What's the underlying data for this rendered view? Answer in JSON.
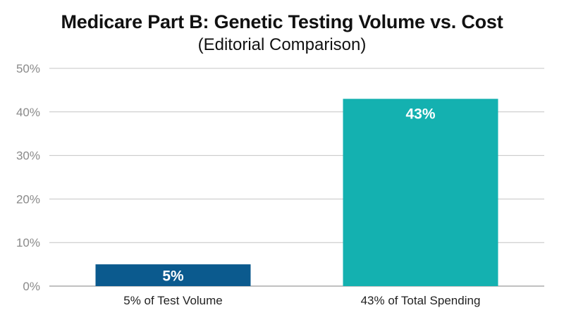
{
  "chart_data": {
    "type": "bar",
    "title": "Medicare Part B: Genetic Testing Volume vs. Cost",
    "subtitle": "(Editorial Comparison)",
    "categories": [
      "5% of Test Volume",
      "43% of Total Spending"
    ],
    "values": [
      5,
      43
    ],
    "value_labels": [
      "5%",
      "43%"
    ],
    "colors": [
      "#0b5a8e",
      "#14b1b0"
    ],
    "ylim": [
      0,
      50
    ],
    "yticks": [
      0,
      10,
      20,
      30,
      40,
      50
    ],
    "ytick_labels": [
      "0%",
      "10%",
      "20%",
      "30%",
      "40%",
      "50%"
    ],
    "xlabel": "",
    "ylabel": "",
    "grid": true,
    "legend": "none"
  }
}
